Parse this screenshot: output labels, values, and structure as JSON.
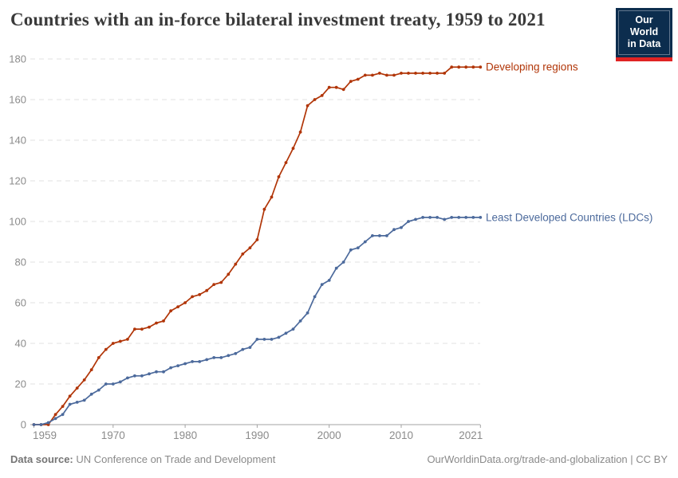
{
  "header": {
    "title": "Countries with an in-force bilateral investment treaty, 1959 to 2021",
    "logo": {
      "line1": "Our World",
      "line2": "in Data",
      "bg_color": "#0c2d4e",
      "bar_color": "#e02323"
    }
  },
  "chart_data": {
    "type": "line",
    "title": "Countries with an in-force bilateral investment treaty, 1959 to 2021",
    "xlabel": "",
    "ylabel": "",
    "xlim": [
      1959,
      2021
    ],
    "ylim": [
      0,
      180
    ],
    "xticks": [
      1959,
      1970,
      1980,
      1990,
      2000,
      2010,
      2021
    ],
    "yticks": [
      0,
      20,
      40,
      60,
      80,
      100,
      120,
      140,
      160,
      180
    ],
    "grid": "horizontal-dashed",
    "legend_position": "end-of-line-labels",
    "x": [
      1959,
      1960,
      1961,
      1962,
      1963,
      1964,
      1965,
      1966,
      1967,
      1968,
      1969,
      1970,
      1971,
      1972,
      1973,
      1974,
      1975,
      1976,
      1977,
      1978,
      1979,
      1980,
      1981,
      1982,
      1983,
      1984,
      1985,
      1986,
      1987,
      1988,
      1989,
      1990,
      1991,
      1992,
      1993,
      1994,
      1995,
      1996,
      1997,
      1998,
      1999,
      2000,
      2001,
      2002,
      2003,
      2004,
      2005,
      2006,
      2007,
      2008,
      2009,
      2010,
      2011,
      2012,
      2013,
      2014,
      2015,
      2016,
      2017,
      2018,
      2019,
      2020,
      2021
    ],
    "series": [
      {
        "name": "Developing regions",
        "color": "#B13507",
        "values": [
          0,
          0,
          0,
          5,
          9,
          14,
          18,
          22,
          27,
          33,
          37,
          40,
          41,
          42,
          47,
          47,
          48,
          50,
          51,
          56,
          58,
          60,
          63,
          64,
          66,
          69,
          70,
          74,
          79,
          84,
          87,
          91,
          106,
          112,
          122,
          129,
          136,
          144,
          157,
          160,
          162,
          166,
          166,
          165,
          169,
          170,
          172,
          172,
          173,
          172,
          172,
          173,
          173,
          173,
          173,
          173,
          173,
          173,
          176,
          176,
          176,
          176,
          176
        ]
      },
      {
        "name": "Least Developed Countries (LDCs)",
        "color": "#4C6A9C",
        "values": [
          0,
          0,
          1,
          3,
          5,
          10,
          11,
          12,
          15,
          17,
          20,
          20,
          21,
          23,
          24,
          24,
          25,
          26,
          26,
          28,
          29,
          30,
          31,
          31,
          32,
          33,
          33,
          34,
          35,
          37,
          38,
          42,
          42,
          42,
          43,
          45,
          47,
          51,
          55,
          63,
          69,
          71,
          77,
          80,
          86,
          87,
          90,
          93,
          93,
          93,
          96,
          97,
          100,
          101,
          102,
          102,
          102,
          101,
          102,
          102,
          102,
          102,
          102
        ]
      }
    ],
    "style": {
      "grid_color": "#e2e2e2",
      "axis_color": "#a3a3a3",
      "tick_label_color": "#8b8b8b"
    }
  },
  "footer": {
    "source_label": "Data source:",
    "source_text": " UN Conference on Trade and Development",
    "right_text": "OurWorldinData.org/trade-and-globalization | CC BY"
  }
}
